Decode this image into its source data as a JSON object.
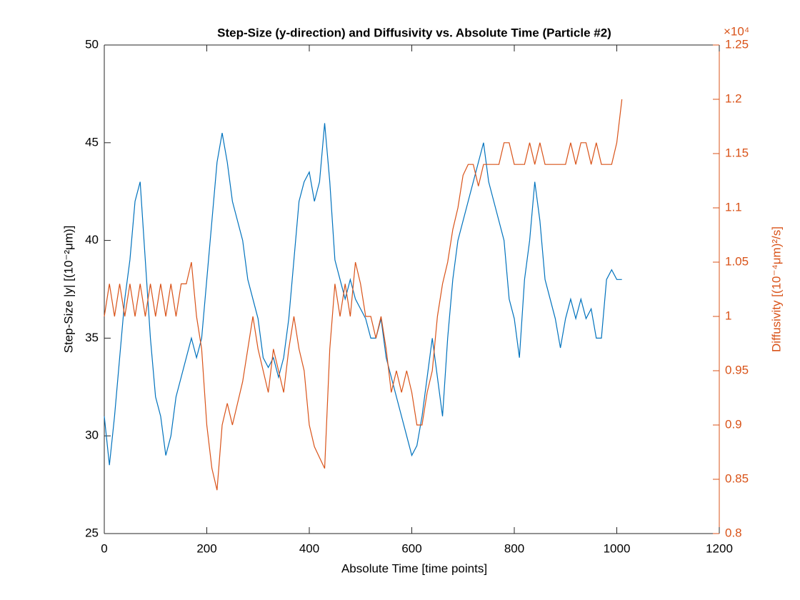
{
  "chart_data": {
    "type": "line",
    "title": "Step-Size (y-direction) and Diffusivity vs. Absolute Time (Particle #2)",
    "x_label": "Absolute Time [time points]",
    "y_label": "Step-Size |y| [(10⁻²μm)]",
    "y2_label": "Diffusivity [(10⁻⁴μm)²/s]",
    "y2_multiplier": "×10⁴",
    "x": [
      0,
      10,
      20,
      30,
      40,
      50,
      60,
      70,
      80,
      90,
      100,
      110,
      120,
      130,
      140,
      150,
      160,
      170,
      180,
      190,
      200,
      210,
      220,
      230,
      240,
      250,
      260,
      270,
      280,
      290,
      300,
      310,
      320,
      330,
      340,
      350,
      360,
      370,
      380,
      390,
      400,
      410,
      420,
      430,
      440,
      450,
      460,
      470,
      480,
      490,
      500,
      510,
      520,
      530,
      540,
      550,
      560,
      570,
      580,
      590,
      600,
      610,
      620,
      630,
      640,
      650,
      660,
      670,
      680,
      690,
      700,
      710,
      720,
      730,
      740,
      750,
      760,
      770,
      780,
      790,
      800,
      810,
      820,
      830,
      840,
      850,
      860,
      870,
      880,
      890,
      900,
      910,
      920,
      930,
      940,
      950,
      960,
      970,
      980,
      990,
      1000,
      1010
    ],
    "series": [
      {
        "name": "Step-Size",
        "color": "#0072BD",
        "axis": "y",
        "values": [
          31,
          28.5,
          31,
          34,
          37,
          39,
          42,
          43,
          39,
          35,
          32,
          31,
          29,
          30,
          32,
          33,
          34,
          35,
          34,
          35,
          38,
          41,
          44,
          45.5,
          44,
          42,
          41,
          40,
          38,
          37,
          36,
          34,
          33.5,
          34,
          33,
          34,
          36,
          39,
          42,
          43,
          43.5,
          42,
          43,
          46,
          43,
          39,
          38,
          37,
          38,
          37,
          36.5,
          36,
          35,
          35,
          36,
          34,
          33,
          32,
          31,
          30,
          29,
          29.5,
          31,
          33,
          35,
          33,
          31,
          35,
          38,
          40,
          41,
          42,
          43,
          44,
          45,
          43,
          42,
          41,
          40,
          37,
          36,
          34,
          38,
          40,
          43,
          41,
          38,
          37,
          36,
          34.5,
          36,
          37,
          36,
          37,
          36,
          36.5,
          35,
          35,
          38,
          38.5,
          38,
          38
        ]
      },
      {
        "name": "Diffusivity",
        "color": "#D95319",
        "axis": "y2",
        "values": [
          1.0,
          1.03,
          1.0,
          1.03,
          1.0,
          1.03,
          1.0,
          1.03,
          1.0,
          1.03,
          1.0,
          1.03,
          1.0,
          1.03,
          1.0,
          1.03,
          1.03,
          1.05,
          1.0,
          0.97,
          0.9,
          0.86,
          0.84,
          0.9,
          0.92,
          0.9,
          0.92,
          0.94,
          0.97,
          1.0,
          0.97,
          0.95,
          0.93,
          0.97,
          0.95,
          0.93,
          0.97,
          1.0,
          0.97,
          0.95,
          0.9,
          0.88,
          0.87,
          0.86,
          0.97,
          1.03,
          1.0,
          1.03,
          1.0,
          1.05,
          1.03,
          1.0,
          1.0,
          0.98,
          1.0,
          0.97,
          0.93,
          0.95,
          0.93,
          0.95,
          0.93,
          0.9,
          0.9,
          0.93,
          0.95,
          1.0,
          1.03,
          1.05,
          1.08,
          1.1,
          1.13,
          1.14,
          1.14,
          1.12,
          1.14,
          1.14,
          1.14,
          1.14,
          1.16,
          1.16,
          1.14,
          1.14,
          1.14,
          1.16,
          1.14,
          1.16,
          1.14,
          1.14,
          1.14,
          1.14,
          1.14,
          1.16,
          1.14,
          1.16,
          1.16,
          1.14,
          1.16,
          1.14,
          1.14,
          1.14,
          1.16,
          1.2
        ]
      }
    ],
    "xlim": [
      0,
      1200
    ],
    "xticks": [
      0,
      200,
      400,
      600,
      800,
      1000,
      1200
    ],
    "ylim": [
      25,
      50
    ],
    "yticks": [
      25,
      30,
      35,
      40,
      45,
      50
    ],
    "y2lim": [
      0.8,
      1.25
    ],
    "y2ticks": [
      0.8,
      0.85,
      0.9,
      0.95,
      1,
      1.05,
      1.1,
      1.15,
      1.2,
      1.25
    ]
  }
}
